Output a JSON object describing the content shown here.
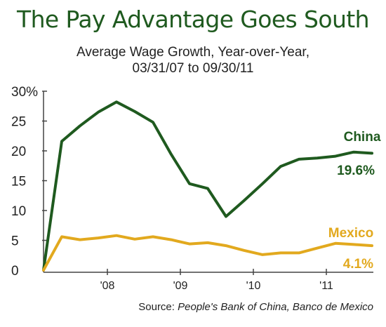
{
  "chart_data": {
    "type": "line",
    "title": "The Pay Advantage Goes South",
    "subtitle_line1": "Average Wage Growth, Year-over-Year,",
    "subtitle_line2": "03/31/07 to 09/30/11",
    "source_label": "Source:",
    "source_text": "People's Bank of China, Banco de Mexico",
    "ylim": [
      0,
      30
    ],
    "yticks": [
      {
        "value": 0,
        "label": "0"
      },
      {
        "value": 5,
        "label": "5"
      },
      {
        "value": 10,
        "label": "10"
      },
      {
        "value": 15,
        "label": "15"
      },
      {
        "value": 20,
        "label": "20"
      },
      {
        "value": 25,
        "label": "25"
      },
      {
        "value": 30,
        "label": "30%"
      }
    ],
    "xticks": [
      {
        "value": 2008.125,
        "label": "'08"
      },
      {
        "value": 2009.125,
        "label": "'09"
      },
      {
        "value": 2010.125,
        "label": "'10"
      },
      {
        "value": 2011.125,
        "label": "'11"
      }
    ],
    "xlim": [
      2007.25,
      2011.75
    ],
    "grid": false,
    "series": [
      {
        "name": "China",
        "end_label": "19.6%",
        "color": "#1f5a1f",
        "points": [
          [
            2007.25,
            0
          ],
          [
            2007.5,
            21.6
          ],
          [
            2007.75,
            24.2
          ],
          [
            2008.0,
            26.5
          ],
          [
            2008.25,
            28.2
          ],
          [
            2008.5,
            26.6
          ],
          [
            2008.75,
            24.8
          ],
          [
            2009.0,
            19.4
          ],
          [
            2009.25,
            14.5
          ],
          [
            2009.5,
            13.7
          ],
          [
            2009.75,
            9.0
          ],
          [
            2010.0,
            11.7
          ],
          [
            2010.25,
            14.5
          ],
          [
            2010.5,
            17.4
          ],
          [
            2010.75,
            18.6
          ],
          [
            2011.0,
            18.8
          ],
          [
            2011.25,
            19.1
          ],
          [
            2011.5,
            19.8
          ],
          [
            2011.75,
            19.6
          ]
        ]
      },
      {
        "name": "Mexico",
        "end_label": "4.1%",
        "color": "#e2a91e",
        "points": [
          [
            2007.25,
            0
          ],
          [
            2007.5,
            5.6
          ],
          [
            2007.75,
            5.1
          ],
          [
            2008.0,
            5.4
          ],
          [
            2008.25,
            5.8
          ],
          [
            2008.5,
            5.2
          ],
          [
            2008.75,
            5.6
          ],
          [
            2009.0,
            5.1
          ],
          [
            2009.25,
            4.4
          ],
          [
            2009.5,
            4.6
          ],
          [
            2009.75,
            4.1
          ],
          [
            2010.0,
            3.3
          ],
          [
            2010.25,
            2.6
          ],
          [
            2010.5,
            2.9
          ],
          [
            2010.75,
            2.9
          ],
          [
            2011.0,
            3.7
          ],
          [
            2011.25,
            4.5
          ],
          [
            2011.5,
            4.3
          ],
          [
            2011.75,
            4.1
          ]
        ]
      }
    ]
  }
}
